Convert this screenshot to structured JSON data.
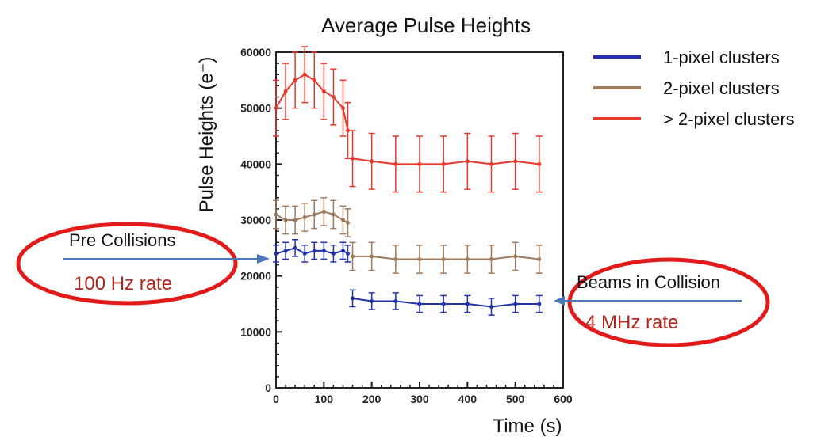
{
  "chart_data": {
    "type": "scatter",
    "title": "Average Pulse Heights",
    "xlabel": "Time (s)",
    "ylabel": "Pulse Heights (e⁻)",
    "xlim": [
      0,
      600
    ],
    "ylim": [
      0,
      60000
    ],
    "x_ticks": [
      0,
      100,
      200,
      300,
      400,
      500,
      600
    ],
    "y_ticks": [
      0,
      10000,
      20000,
      30000,
      40000,
      50000,
      60000
    ],
    "error_bars": true,
    "legend_position": "top-right, outside plot",
    "series": [
      {
        "name": "1-pixel clusters",
        "color": "#2233aa",
        "segments": [
          {
            "x": [
              0,
              20,
              40,
              60,
              80,
              100,
              120,
              140,
              150
            ],
            "y": [
              24000,
              24500,
              25000,
              24000,
              24500,
              24500,
              24000,
              24500,
              24000
            ]
          },
          {
            "x": [
              160,
              200,
              250,
              300,
              350,
              400,
              450,
              500,
              550
            ],
            "y": [
              16000,
              15500,
              15500,
              15000,
              15000,
              15000,
              14500,
              15000,
              15000
            ]
          }
        ],
        "error": 1500
      },
      {
        "name": "2-pixel clusters",
        "color": "#a07a5c",
        "segments": [
          {
            "x": [
              0,
              20,
              40,
              60,
              80,
              100,
              120,
              140,
              150
            ],
            "y": [
              31000,
              30000,
              30000,
              30500,
              31000,
              31500,
              31000,
              30000,
              29500
            ]
          },
          {
            "x": [
              160,
              200,
              250,
              300,
              350,
              400,
              450,
              500,
              550
            ],
            "y": [
              23500,
              23500,
              23000,
              23000,
              23000,
              23000,
              23000,
              23500,
              23000
            ]
          }
        ],
        "error": 2500
      },
      {
        "name": "> 2-pixel clusters",
        "color": "#e8382c",
        "segments": [
          {
            "x": [
              0,
              20,
              40,
              60,
              80,
              100,
              120,
              140,
              150
            ],
            "y": [
              50000,
              53000,
              55000,
              56000,
              55000,
              53000,
              52000,
              50000,
              46000
            ]
          },
          {
            "x": [
              160,
              200,
              250,
              300,
              350,
              400,
              450,
              500,
              550
            ],
            "y": [
              41000,
              40500,
              40000,
              40000,
              40000,
              40500,
              40000,
              40500,
              40000
            ]
          }
        ],
        "error": 5000
      }
    ],
    "annotations": [
      {
        "label": "Pre Collisions",
        "rate": "100 Hz rate",
        "points_to": "left axis, y≈22000"
      },
      {
        "label": "Beams in Collision",
        "rate": "4 MHz rate",
        "points_to": "right end, y≈15000"
      }
    ]
  }
}
